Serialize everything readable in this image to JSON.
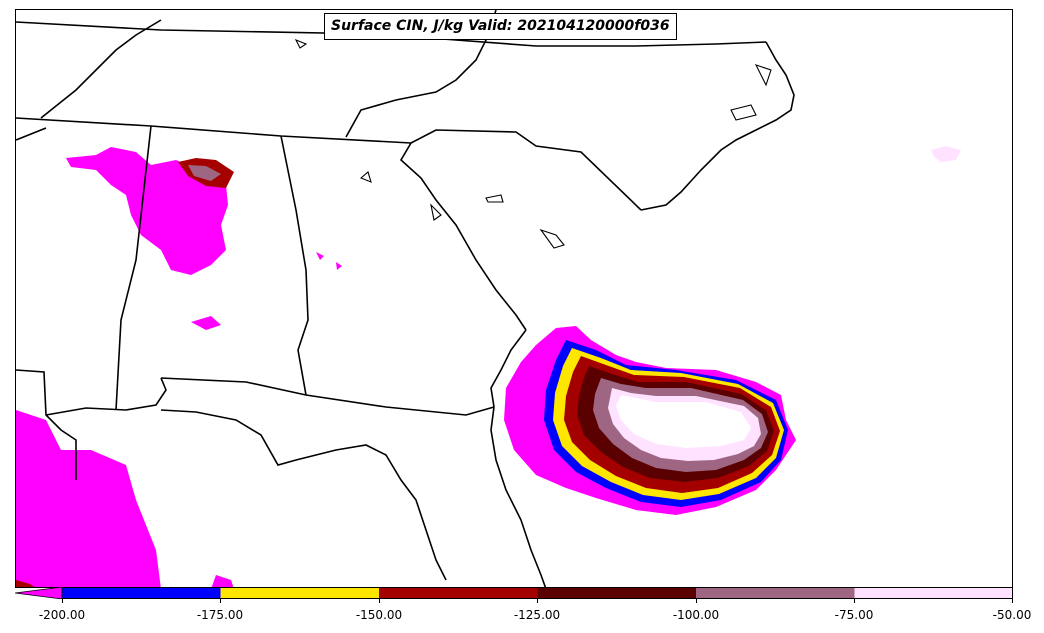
{
  "title": "Surface CIN, J/kg Valid: 202104120000f036",
  "colors": {
    "lt_minus200": "#ff00ff",
    "minus200_175": "#0000ff",
    "minus175_150": "#ffe600",
    "minus150_125": "#a50000",
    "minus125_100": "#5a0000",
    "minus100_75": "#9e6683",
    "minus75_50": "#ffe2ff",
    "boundary": "#000000"
  },
  "colorbar": {
    "ticks": [
      "-200.00",
      "-175.00",
      "-150.00",
      "-125.00",
      "-100.00",
      "-75.00",
      "-50.00"
    ]
  }
}
